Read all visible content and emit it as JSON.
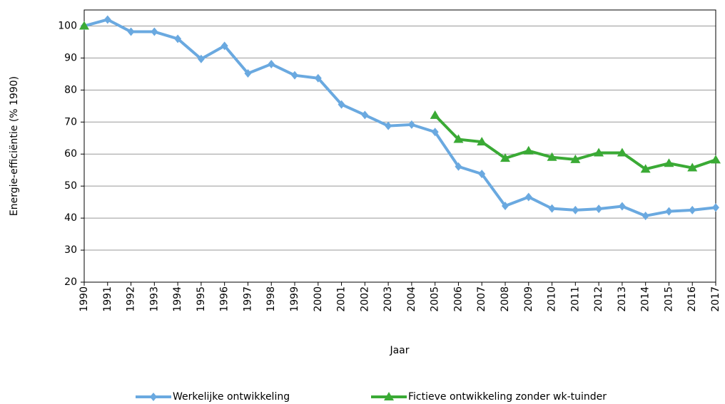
{
  "chart_data": {
    "type": "line",
    "x_label": "Jaar",
    "y_label": "Energie-efficiëntie (% 1990)",
    "x": [
      1990,
      1991,
      1992,
      1993,
      1994,
      1995,
      1996,
      1997,
      1998,
      1999,
      2000,
      2001,
      2002,
      2003,
      2004,
      2005,
      2006,
      2007,
      2008,
      2009,
      2010,
      2011,
      2012,
      2013,
      2014,
      2015,
      2016,
      2017
    ],
    "xlim": [
      1990,
      2017
    ],
    "xticks": [
      1990,
      1991,
      1992,
      1993,
      1994,
      1995,
      1996,
      1997,
      1998,
      1999,
      2000,
      2001,
      2002,
      2003,
      2004,
      2005,
      2006,
      2007,
      2008,
      2009,
      2010,
      2011,
      2012,
      2013,
      2014,
      2015,
      2016,
      2017
    ],
    "ylim": [
      20,
      105
    ],
    "yticks": [
      20,
      30,
      40,
      50,
      60,
      70,
      80,
      90,
      100
    ],
    "grid": true,
    "legend": "bottom",
    "series": [
      {
        "name": "Werkelijke ontwikkeling",
        "color": "#6aa9e0",
        "marker": "diamond",
        "values": [
          100,
          102,
          98.2,
          98.2,
          96,
          89.7,
          93.8,
          85.2,
          88.1,
          84.6,
          83.7,
          75.5,
          72.2,
          68.8,
          69.2,
          66.9,
          56.1,
          53.8,
          43.8,
          46.6,
          43,
          42.5,
          42.9,
          43.7,
          40.7,
          42.1,
          42.5,
          43.3
        ]
      },
      {
        "name": "Fictieve ontwikkeling zonder wk-tuinder",
        "color": "#3aaa35",
        "marker": "triangle",
        "values": [
          100,
          null,
          null,
          null,
          null,
          null,
          null,
          null,
          null,
          null,
          null,
          null,
          null,
          null,
          null,
          72.1,
          64.6,
          63.8,
          58.7,
          61,
          59,
          58.3,
          60.4,
          60.4,
          55.3,
          57.1,
          55.7,
          58.2
        ]
      }
    ]
  }
}
